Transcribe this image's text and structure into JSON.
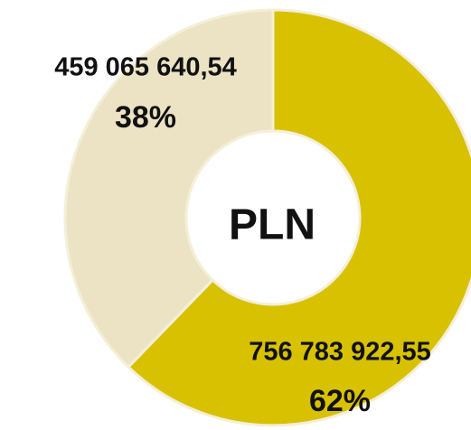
{
  "chart_data": {
    "type": "donut",
    "center_label": "PLN",
    "categories": [
      null,
      null
    ],
    "values": [
      756783922.55,
      459065640.54
    ],
    "value_labels": [
      "756 783 922,55",
      "459 065 640,54"
    ],
    "percent_labels": [
      "62%",
      "38%"
    ],
    "colors": [
      "#d8c100",
      "#ece3c4"
    ]
  }
}
